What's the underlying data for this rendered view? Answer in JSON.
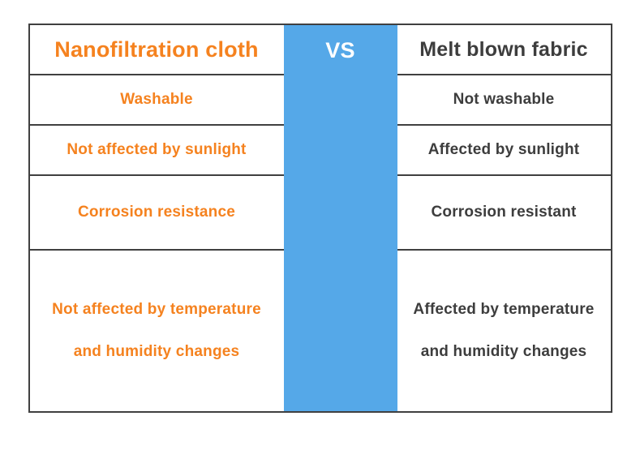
{
  "table": {
    "header": {
      "left": "Nanofiltration cloth",
      "vs": "VS",
      "right": "Melt blown fabric"
    },
    "rows": [
      {
        "left": "Washable",
        "right": "Not washable"
      },
      {
        "left": "Not affected by sunlight",
        "right": "Affected by sunlight"
      },
      {
        "left": "Corrosion resistance",
        "right": "Corrosion resistant"
      },
      {
        "left": "Not affected by temperature and humidity changes",
        "right": "Affected by temperature and humidity changes"
      }
    ],
    "colors": {
      "accent_orange": "#f5821f",
      "accent_blue": "#55a8e8",
      "text_dark": "#3d3d3d",
      "border": "#404040"
    }
  }
}
